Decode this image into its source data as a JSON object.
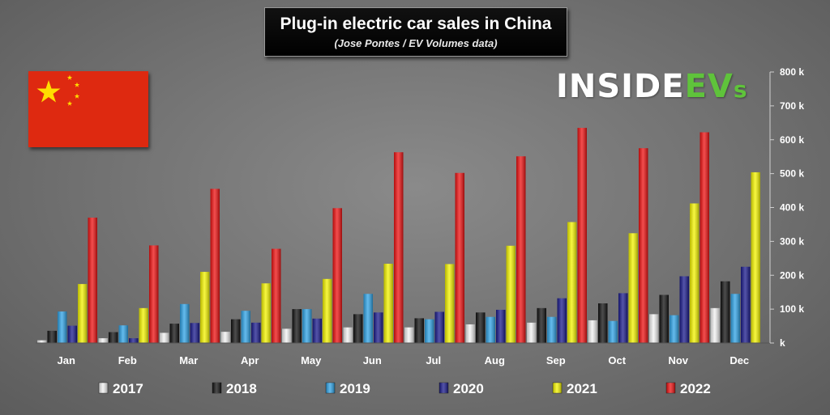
{
  "title": "Plug-in electric car sales in China",
  "subtitle": "(Jose Pontes / EV Volumes data)",
  "logo": {
    "part1": "INSIDE",
    "part2": "EV",
    "part3": "s"
  },
  "flag_icon": "china-flag",
  "chart_data": {
    "type": "bar",
    "categories": [
      "Jan",
      "Feb",
      "Mar",
      "Apr",
      "May",
      "Jun",
      "Jul",
      "Aug",
      "Sep",
      "Oct",
      "Nov",
      "Dec"
    ],
    "ylim": [
      0,
      800000
    ],
    "yticks": [
      0,
      100000,
      200000,
      300000,
      400000,
      500000,
      600000,
      700000,
      800000
    ],
    "ytick_labels": [
      "k",
      "100 k",
      "200 k",
      "300 k",
      "400 k",
      "500 k",
      "600 k",
      "700 k",
      "800 k"
    ],
    "grid": false,
    "legend_position": "bottom",
    "series": [
      {
        "name": "2017",
        "color": "#f2f2f2",
        "values": [
          8000,
          14000,
          30000,
          33000,
          42000,
          46000,
          46000,
          55000,
          60000,
          67000,
          85000,
          103000
        ]
      },
      {
        "name": "2018",
        "color": "#111111",
        "values": [
          36000,
          32000,
          57000,
          70000,
          100000,
          85000,
          73000,
          90000,
          103000,
          117000,
          142000,
          182000
        ]
      },
      {
        "name": "2019",
        "color": "#2fa3e6",
        "values": [
          93000,
          52000,
          115000,
          95000,
          100000,
          145000,
          70000,
          77000,
          77000,
          65000,
          82000,
          145000
        ]
      },
      {
        "name": "2020",
        "color": "#1a1a8c",
        "values": [
          51000,
          14000,
          59000,
          60000,
          72000,
          90000,
          92000,
          98000,
          132000,
          147000,
          197000,
          225000
        ]
      },
      {
        "name": "2021",
        "color": "#f4f400",
        "values": [
          174000,
          103000,
          210000,
          176000,
          189000,
          234000,
          233000,
          287000,
          357000,
          324000,
          412000,
          504000
        ]
      },
      {
        "name": "2022",
        "color": "#ee1111",
        "values": [
          370000,
          288000,
          455000,
          278000,
          398000,
          563000,
          502000,
          551000,
          635000,
          575000,
          622000,
          null
        ]
      }
    ]
  }
}
